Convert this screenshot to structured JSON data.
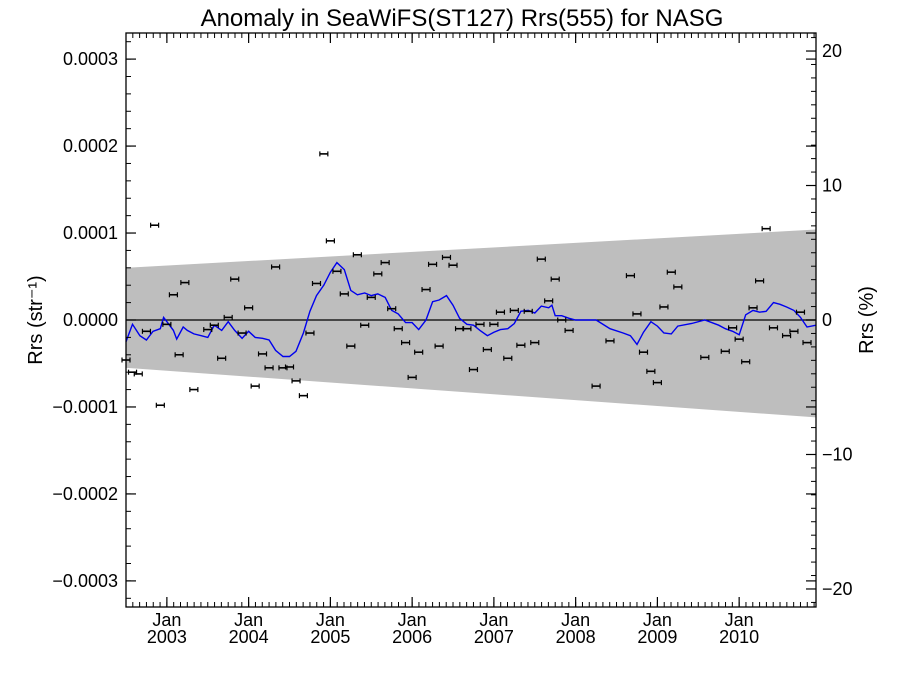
{
  "chart_data": {
    "type": "scatter",
    "title": "Anomaly in SeaWiFS(ST127) Rrs(555) for NASG",
    "ylabel_left": "Rrs (str⁻¹)",
    "ylabel_right": "Rrs (%)",
    "xlim": [
      2002.5,
      2010.94
    ],
    "ylim": [
      -0.00033,
      0.00033
    ],
    "ylim_right": [
      -21.34,
      21.34
    ],
    "left_ticks": [
      {
        "value": 0.0003,
        "label": "0.0003"
      },
      {
        "value": 0.0002,
        "label": "0.0002"
      },
      {
        "value": 0.0001,
        "label": "0.0001"
      },
      {
        "value": 0.0,
        "label": "0.0000"
      },
      {
        "value": -0.0001,
        "label": "−0.0001"
      },
      {
        "value": -0.0002,
        "label": "−0.0002"
      },
      {
        "value": -0.0003,
        "label": "−0.0003"
      }
    ],
    "right_ticks": [
      {
        "value": 20,
        "label": "20"
      },
      {
        "value": 10,
        "label": "10"
      },
      {
        "value": 0,
        "label": "0"
      },
      {
        "value": -10,
        "label": "−10"
      },
      {
        "value": -20,
        "label": "−20"
      }
    ],
    "x_ticks": [
      {
        "value": 2003.0,
        "month": "Jan",
        "year": "2003"
      },
      {
        "value": 2004.0,
        "month": "Jan",
        "year": "2004"
      },
      {
        "value": 2005.0,
        "month": "Jan",
        "year": "2005"
      },
      {
        "value": 2006.0,
        "month": "Jan",
        "year": "2006"
      },
      {
        "value": 2007.0,
        "month": "Jan",
        "year": "2007"
      },
      {
        "value": 2008.0,
        "month": "Jan",
        "year": "2008"
      },
      {
        "value": 2009.0,
        "month": "Jan",
        "year": "2009"
      },
      {
        "value": 2010.0,
        "month": "Jan",
        "year": "2010"
      }
    ],
    "band": {
      "start": {
        "x": 2002.5,
        "upper": 6e-05,
        "lower": -5.5e-05
      },
      "end": {
        "x": 2010.94,
        "upper": 0.000104,
        "lower": -0.000112
      },
      "color": "#bebebe"
    },
    "zero_line": true,
    "grid": false,
    "series": [
      {
        "type": "scatter_errorbar",
        "color": "#000000",
        "points": [
          [
            2002.5,
            -4.6e-05
          ],
          [
            2002.58,
            -6e-05
          ],
          [
            2002.65,
            -6.2e-05
          ],
          [
            2002.75,
            -1.3e-05
          ],
          [
            2002.85,
            0.000109
          ],
          [
            2002.92,
            -9.8e-05
          ],
          [
            2003.0,
            -5e-06
          ],
          [
            2003.08,
            2.9e-05
          ],
          [
            2003.15,
            -4e-05
          ],
          [
            2003.22,
            4.3e-05
          ],
          [
            2003.33,
            -8e-05
          ],
          [
            2003.5,
            -1.1e-05
          ],
          [
            2003.58,
            -6e-06
          ],
          [
            2003.67,
            -4.4e-05
          ],
          [
            2003.75,
            3e-06
          ],
          [
            2003.83,
            4.7e-05
          ],
          [
            2003.92,
            -1.5e-05
          ],
          [
            2004.0,
            1.4e-05
          ],
          [
            2004.08,
            -7.6e-05
          ],
          [
            2004.17,
            -3.9e-05
          ],
          [
            2004.25,
            -5.5e-05
          ],
          [
            2004.33,
            6.1e-05
          ],
          [
            2004.42,
            -5.5e-05
          ],
          [
            2004.5,
            -5.4e-05
          ],
          [
            2004.58,
            -7e-05
          ],
          [
            2004.67,
            -8.7e-05
          ],
          [
            2004.75,
            -1.5e-05
          ],
          [
            2004.83,
            4.2e-05
          ],
          [
            2004.92,
            0.000191
          ],
          [
            2005.0,
            9.1e-05
          ],
          [
            2005.08,
            5.6e-05
          ],
          [
            2005.17,
            3e-05
          ],
          [
            2005.25,
            -3e-05
          ],
          [
            2005.33,
            7.5e-05
          ],
          [
            2005.42,
            -6e-06
          ],
          [
            2005.5,
            2.6e-05
          ],
          [
            2005.58,
            5.3e-05
          ],
          [
            2005.67,
            6.6e-05
          ],
          [
            2005.75,
            1.3e-05
          ],
          [
            2005.83,
            -1e-05
          ],
          [
            2005.92,
            -2.6e-05
          ],
          [
            2006.0,
            -6.6e-05
          ],
          [
            2006.08,
            -3.7e-05
          ],
          [
            2006.17,
            3.5e-05
          ],
          [
            2006.25,
            6.4e-05
          ],
          [
            2006.33,
            -3e-05
          ],
          [
            2006.42,
            7.2e-05
          ],
          [
            2006.5,
            6.3e-05
          ],
          [
            2006.58,
            -1e-05
          ],
          [
            2006.67,
            -1e-05
          ],
          [
            2006.75,
            -5.7e-05
          ],
          [
            2006.83,
            -5e-06
          ],
          [
            2006.92,
            -3.4e-05
          ],
          [
            2007.0,
            -5e-06
          ],
          [
            2007.08,
            9e-06
          ],
          [
            2007.17,
            -4.4e-05
          ],
          [
            2007.25,
            1.1e-05
          ],
          [
            2007.33,
            -2.9e-05
          ],
          [
            2007.42,
            1e-05
          ],
          [
            2007.5,
            -2.6e-05
          ],
          [
            2007.58,
            7e-05
          ],
          [
            2007.67,
            2.2e-05
          ],
          [
            2007.75,
            4.7e-05
          ],
          [
            2007.83,
            0.0
          ],
          [
            2007.92,
            -1.2e-05
          ],
          [
            2008.25,
            -7.6e-05
          ],
          [
            2008.42,
            -2.4e-05
          ],
          [
            2008.67,
            5.1e-05
          ],
          [
            2008.75,
            7e-06
          ],
          [
            2008.83,
            -3.7e-05
          ],
          [
            2008.92,
            -5.9e-05
          ],
          [
            2009.0,
            -7.2e-05
          ],
          [
            2009.08,
            1.5e-05
          ],
          [
            2009.17,
            5.5e-05
          ],
          [
            2009.25,
            3.8e-05
          ],
          [
            2009.58,
            -4.3e-05
          ],
          [
            2009.83,
            -3.6e-05
          ],
          [
            2009.92,
            -9e-06
          ],
          [
            2010.0,
            -2.2e-05
          ],
          [
            2010.08,
            -4.8e-05
          ],
          [
            2010.17,
            1.4e-05
          ],
          [
            2010.25,
            4.5e-05
          ],
          [
            2010.33,
            0.000105
          ],
          [
            2010.42,
            -9e-06
          ],
          [
            2010.58,
            -1.8e-05
          ],
          [
            2010.67,
            -1.3e-05
          ],
          [
            2010.75,
            9e-06
          ],
          [
            2010.83,
            -2.6e-05
          ]
        ]
      },
      {
        "type": "line",
        "color": "#0000ee",
        "points": [
          [
            2002.5,
            -2.5e-05
          ],
          [
            2002.58,
            -5e-06
          ],
          [
            2002.67,
            -1.8e-05
          ],
          [
            2002.75,
            -2.3e-05
          ],
          [
            2002.83,
            -1.3e-05
          ],
          [
            2002.92,
            -1e-05
          ],
          [
            2002.96,
            3e-06
          ],
          [
            2003.0,
            -2e-06
          ],
          [
            2003.08,
            -1.2e-05
          ],
          [
            2003.12,
            -2.2e-05
          ],
          [
            2003.2,
            -8e-06
          ],
          [
            2003.25,
            -1.2e-05
          ],
          [
            2003.33,
            -1.6e-05
          ],
          [
            2003.42,
            -1.8e-05
          ],
          [
            2003.5,
            -2e-05
          ],
          [
            2003.58,
            -6e-06
          ],
          [
            2003.67,
            -1.2e-05
          ],
          [
            2003.75,
            -2e-06
          ],
          [
            2003.83,
            -1.2e-05
          ],
          [
            2003.92,
            -2.1e-05
          ],
          [
            2004.0,
            -1.3e-05
          ],
          [
            2004.08,
            -2e-05
          ],
          [
            2004.17,
            -2.1e-05
          ],
          [
            2004.25,
            -2.3e-05
          ],
          [
            2004.33,
            -3.5e-05
          ],
          [
            2004.42,
            -4.2e-05
          ],
          [
            2004.5,
            -4.2e-05
          ],
          [
            2004.58,
            -3.6e-05
          ],
          [
            2004.67,
            -1.5e-05
          ],
          [
            2004.75,
            1e-05
          ],
          [
            2004.83,
            2.8e-05
          ],
          [
            2004.92,
            4e-05
          ],
          [
            2005.0,
            5.5e-05
          ],
          [
            2005.08,
            6.6e-05
          ],
          [
            2005.17,
            5.8e-05
          ],
          [
            2005.25,
            3.4e-05
          ],
          [
            2005.33,
            2.9e-05
          ],
          [
            2005.42,
            3.1e-05
          ],
          [
            2005.5,
            2.8e-05
          ],
          [
            2005.58,
            3e-05
          ],
          [
            2005.67,
            2.6e-05
          ],
          [
            2005.75,
            1.1e-05
          ],
          [
            2005.83,
            7e-06
          ],
          [
            2005.92,
            -3e-06
          ],
          [
            2006.0,
            -3e-06
          ],
          [
            2006.08,
            -1.1e-05
          ],
          [
            2006.17,
            0.0
          ],
          [
            2006.25,
            2.1e-05
          ],
          [
            2006.33,
            2.3e-05
          ],
          [
            2006.42,
            2.8e-05
          ],
          [
            2006.5,
            1.7e-05
          ],
          [
            2006.58,
            2e-06
          ],
          [
            2006.67,
            -5e-06
          ],
          [
            2006.75,
            -6e-06
          ],
          [
            2006.83,
            -1.2e-05
          ],
          [
            2006.92,
            -1.8e-05
          ],
          [
            2007.0,
            -1.4e-05
          ],
          [
            2007.08,
            -1.1e-05
          ],
          [
            2007.17,
            -1e-05
          ],
          [
            2007.25,
            -4e-06
          ],
          [
            2007.33,
            1e-05
          ],
          [
            2007.42,
            1.1e-05
          ],
          [
            2007.5,
            8e-06
          ],
          [
            2007.58,
            1.6e-05
          ],
          [
            2007.67,
            1.4e-05
          ],
          [
            2007.71,
            1.7e-05
          ],
          [
            2007.75,
            5e-06
          ],
          [
            2007.83,
            5e-06
          ],
          [
            2007.92,
            2e-06
          ],
          [
            2008.0,
            0.0
          ],
          [
            2008.25,
            0.0
          ],
          [
            2008.42,
            -1e-05
          ],
          [
            2008.58,
            -1.5e-05
          ],
          [
            2008.67,
            -1.8e-05
          ],
          [
            2008.75,
            -2.8e-05
          ],
          [
            2008.83,
            -1.4e-05
          ],
          [
            2008.92,
            -2e-06
          ],
          [
            2009.0,
            -7e-06
          ],
          [
            2009.08,
            -1.5e-05
          ],
          [
            2009.17,
            -1.6e-05
          ],
          [
            2009.25,
            -7e-06
          ],
          [
            2009.42,
            -4e-06
          ],
          [
            2009.58,
            0.0
          ],
          [
            2009.75,
            -6e-06
          ],
          [
            2009.83,
            -1e-05
          ],
          [
            2009.92,
            -1.3e-05
          ],
          [
            2010.0,
            -1.7e-05
          ],
          [
            2010.08,
            6e-06
          ],
          [
            2010.17,
            1.1e-05
          ],
          [
            2010.25,
            9e-06
          ],
          [
            2010.33,
            1e-05
          ],
          [
            2010.42,
            2e-05
          ],
          [
            2010.5,
            1.8e-05
          ],
          [
            2010.58,
            1.5e-05
          ],
          [
            2010.67,
            1.1e-05
          ],
          [
            2010.75,
            3e-06
          ],
          [
            2010.83,
            -8e-06
          ],
          [
            2010.94,
            -6e-06
          ]
        ]
      }
    ]
  }
}
